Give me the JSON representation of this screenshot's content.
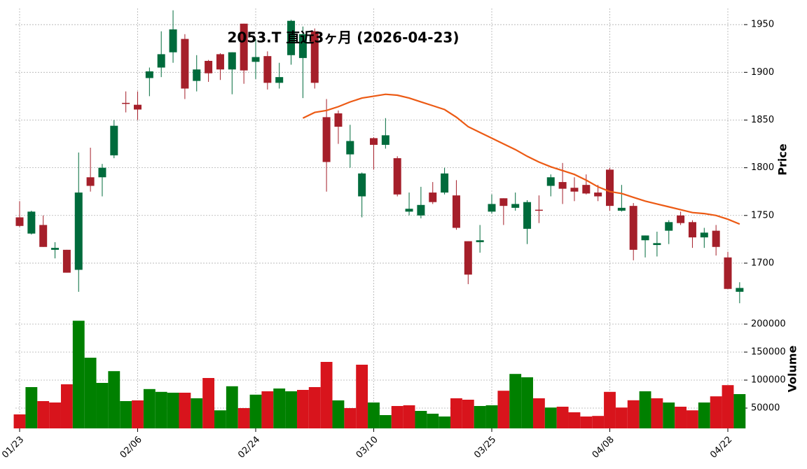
{
  "chart_data": {
    "type": "candlestick",
    "title": "2053.T 直近3ヶ月 (2026-04-23)",
    "ylabel": "Price",
    "y2label": "Volume",
    "categories": [
      "01/23",
      null,
      null,
      null,
      null,
      null,
      null,
      null,
      null,
      null,
      "02/06",
      null,
      null,
      null,
      null,
      null,
      null,
      null,
      null,
      null,
      "02/24",
      null,
      null,
      null,
      null,
      null,
      null,
      null,
      null,
      null,
      "03/10",
      null,
      null,
      null,
      null,
      null,
      null,
      null,
      null,
      null,
      "03/25",
      null,
      null,
      null,
      null,
      null,
      null,
      null,
      null,
      null,
      "04/08",
      null,
      null,
      null,
      null,
      null,
      null,
      null,
      null,
      null,
      "04/22",
      null
    ],
    "open": [
      1748,
      1731,
      1740,
      1714,
      1714,
      1693,
      1790,
      1790,
      1813,
      1868,
      1866,
      1894,
      1905,
      1921,
      1935,
      1891,
      1912,
      1919,
      1903,
      1951,
      1911,
      1917,
      1889,
      1918,
      1915,
      1943,
      1853,
      1857,
      1814,
      1770,
      1831,
      1824,
      1810,
      1754,
      1750,
      1774,
      1774,
      1771,
      1723,
      1722,
      1754,
      1768,
      1758,
      1736,
      1756,
      1781,
      1785,
      1779,
      1782,
      1774,
      1798,
      1755,
      1760,
      1724,
      1719,
      1734,
      1750,
      1743,
      1727,
      1734,
      1706,
      1670
    ],
    "high": [
      1765,
      1755,
      1750,
      1722,
      1714,
      1816,
      1821,
      1804,
      1850,
      1880,
      1880,
      1905,
      1943,
      1965,
      1940,
      1918,
      1913,
      1920,
      1921,
      1951,
      1935,
      1922,
      1910,
      1955,
      1948,
      1946,
      1872,
      1860,
      1845,
      1795,
      1832,
      1852,
      1812,
      1774,
      1780,
      1785,
      1800,
      1787,
      1723,
      1740,
      1772,
      1768,
      1774,
      1766,
      1771,
      1793,
      1805,
      1790,
      1793,
      1782,
      1800,
      1782,
      1763,
      1729,
      1733,
      1745,
      1754,
      1745,
      1737,
      1740,
      1712,
      1680
    ],
    "low": [
      1738,
      1730,
      1717,
      1705,
      1690,
      1670,
      1775,
      1770,
      1810,
      1858,
      1850,
      1875,
      1895,
      1910,
      1872,
      1880,
      1890,
      1892,
      1877,
      1888,
      1893,
      1882,
      1883,
      1908,
      1873,
      1883,
      1775,
      1825,
      1800,
      1748,
      1798,
      1820,
      1770,
      1750,
      1747,
      1762,
      1772,
      1735,
      1678,
      1711,
      1752,
      1740,
      1755,
      1720,
      1742,
      1770,
      1762,
      1765,
      1772,
      1765,
      1755,
      1754,
      1703,
      1706,
      1707,
      1720,
      1740,
      1716,
      1716,
      1708,
      1673,
      1658
    ],
    "close": [
      1739,
      1754,
      1717,
      1716,
      1690,
      1774,
      1781,
      1800,
      1844,
      1867,
      1861,
      1901,
      1919,
      1945,
      1883,
      1903,
      1899,
      1903,
      1921,
      1902,
      1916,
      1889,
      1895,
      1954,
      1940,
      1889,
      1806,
      1843,
      1828,
      1794,
      1824,
      1834,
      1772,
      1757,
      1761,
      1764,
      1794,
      1737,
      1688,
      1724,
      1762,
      1760,
      1762,
      1764,
      1755,
      1790,
      1778,
      1775,
      1773,
      1770,
      1760,
      1758,
      1714,
      1729,
      1721,
      1743,
      1742,
      1727,
      1732,
      1717,
      1673,
      1674
    ],
    "volume": [
      38750,
      87500,
      62500,
      60000,
      92500,
      206000,
      140000,
      95000,
      116000,
      62500,
      63750,
      84000,
      79000,
      77500,
      77500,
      67500,
      103750,
      46000,
      89000,
      50000,
      74000,
      80000,
      85000,
      80000,
      82500,
      87500,
      132500,
      63750,
      50000,
      127500,
      60000,
      37500,
      53750,
      55000,
      45000,
      40000,
      35000,
      67500,
      65000,
      53750,
      55000,
      81000,
      111000,
      105000,
      67500,
      51000,
      52500,
      42500,
      35000,
      36000,
      79000,
      51000,
      64000,
      80000,
      67500,
      60000,
      52500,
      46000,
      60000,
      71000,
      91000,
      75000
    ],
    "ma": [
      null,
      null,
      null,
      null,
      null,
      null,
      null,
      null,
      null,
      null,
      null,
      null,
      null,
      null,
      null,
      null,
      null,
      null,
      null,
      null,
      null,
      null,
      null,
      null,
      1852,
      1858,
      1860,
      1864,
      1869,
      1873,
      1875,
      1877,
      1876,
      1873,
      1869,
      1865,
      1861,
      1853,
      1843,
      1837,
      1831,
      1825,
      1819,
      1812,
      1806,
      1801,
      1797,
      1793,
      1787,
      1780,
      1775,
      1773,
      1769,
      1765,
      1762,
      1759,
      1756,
      1753,
      1752,
      1750,
      1746,
      1741
    ],
    "up_color": "#006b3c",
    "down_color": "#a51f2a",
    "volume_up_color": "#008000",
    "volume_down_color": "#d8141c",
    "ma_color": "#ec5a14",
    "ylim": [
      1653,
      1967
    ],
    "yticks": [
      1700,
      1750,
      1800,
      1850,
      1900,
      1950
    ],
    "y2lim": [
      13750,
      222500
    ],
    "y2ticks": [
      50000,
      100000,
      150000,
      200000
    ],
    "grid": true
  }
}
